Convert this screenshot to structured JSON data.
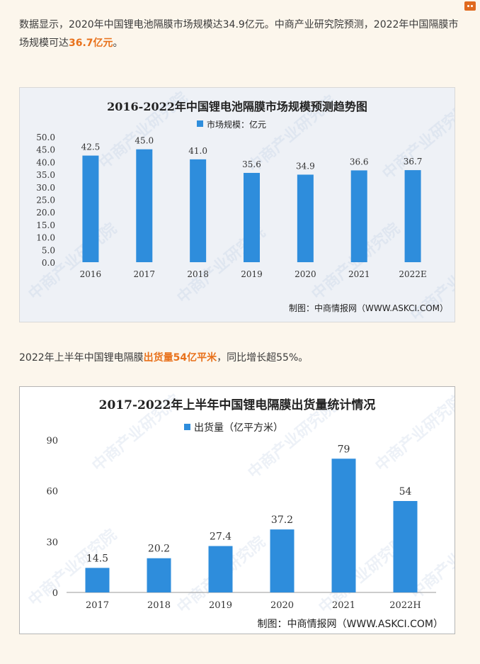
{
  "paragraph1": {
    "text_before": "数据显示，2020年中国锂电池隔膜市场规模达34.9亿元。中商产业研究院预测，2022年中国隔膜市场规模可达",
    "highlight": "36.7亿元",
    "text_after": "。"
  },
  "paragraph2": {
    "text_before": "2022年上半年中国锂电隔膜",
    "highlight": "出货量54亿平米",
    "text_after": "，同比增长超55%。"
  },
  "colors": {
    "bar": "#2e8ddc",
    "highlight": "#e8711b",
    "page_bg": "#fcf6ec"
  },
  "chart_data": [
    {
      "type": "bar",
      "title": "2016-2022年中国锂电池隔膜市场规模预测趋势图",
      "legend": "市场规模：亿元",
      "categories": [
        "2016",
        "2017",
        "2018",
        "2019",
        "2020",
        "2021",
        "2022E"
      ],
      "values": [
        42.5,
        45.0,
        41.0,
        35.6,
        34.9,
        36.6,
        36.7
      ],
      "value_labels": [
        "42.5",
        "45.0",
        "41.0",
        "35.6",
        "34.9",
        "36.6",
        "36.7"
      ],
      "ylim": [
        0,
        50
      ],
      "yticks": [
        "0.0",
        "5.0",
        "10.0",
        "15.0",
        "20.0",
        "25.0",
        "30.0",
        "35.0",
        "40.0",
        "45.0",
        "50.0"
      ],
      "grid": false,
      "credit": "制图：中商情报网（WWW.ASKCI.COM）",
      "watermark": "中商产业研究院"
    },
    {
      "type": "bar",
      "title": "2017-2022年上半年中国锂电隔膜出货量统计情况",
      "legend": "出货量（亿平方米）",
      "categories": [
        "2017",
        "2018",
        "2019",
        "2020",
        "2021",
        "2022H"
      ],
      "values": [
        14.5,
        20.2,
        27.4,
        37.2,
        79,
        54
      ],
      "value_labels": [
        "14.5",
        "20.2",
        "27.4",
        "37.2",
        "79",
        "54"
      ],
      "ylim": [
        0,
        90
      ],
      "yticks": [
        "0",
        "30",
        "60",
        "90"
      ],
      "grid": false,
      "credit": "制图：中商情报网（WWW.ASKCI.COM）",
      "watermark": "中商产业研究院"
    }
  ]
}
